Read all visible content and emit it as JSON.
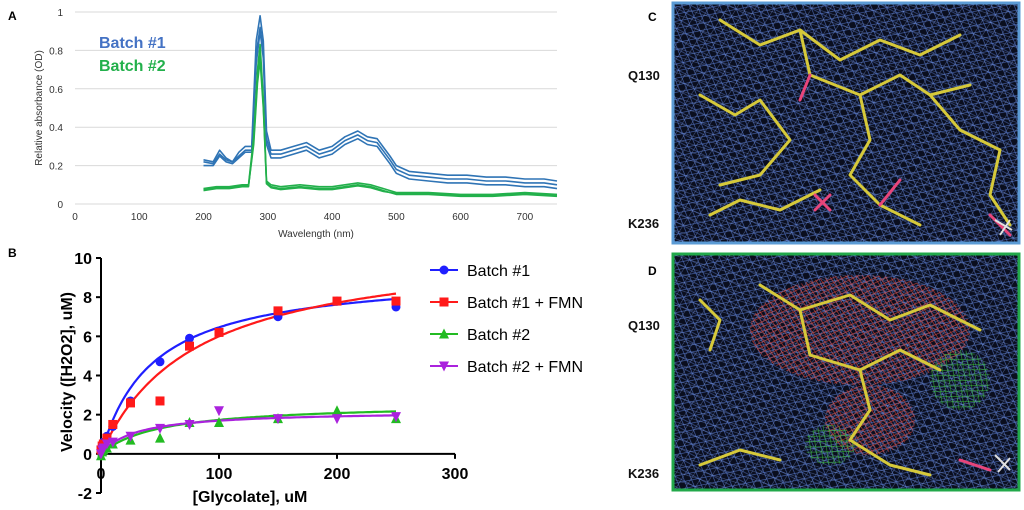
{
  "chart_data": [
    {
      "panel": "A",
      "type": "line",
      "xlabel": "Wavelength (nm)",
      "ylabel": "Relative absorbance (OD)",
      "xlim": [
        0,
        750
      ],
      "ylim": [
        0,
        1
      ],
      "xticks": [
        0,
        100,
        200,
        300,
        400,
        500,
        600,
        700
      ],
      "yticks": [
        0,
        0.2,
        0.4,
        0.6,
        0.8,
        1
      ],
      "xtick_labels": [
        "0",
        "100",
        "200",
        "300",
        "400",
        "500",
        "600",
        "700"
      ],
      "ytick_labels": [
        "0",
        "0.2",
        "0.4",
        "0.6",
        "0.8",
        "1"
      ],
      "grid": "horizontal",
      "legend": "top-left",
      "series": [
        {
          "name": "Batch #1",
          "color": "#2f74b5",
          "replicates": [
            {
              "x": [
                200,
                215,
                225,
                235,
                245,
                255,
                265,
                275,
                282,
                288,
                293,
                298,
                305,
                320,
                340,
                360,
                380,
                400,
                420,
                440,
                455,
                470,
                490,
                500,
                520,
                550,
                580,
                610,
                640,
                670,
                700,
                730,
                750
              ],
              "y": [
                0.23,
                0.22,
                0.28,
                0.24,
                0.22,
                0.27,
                0.3,
                0.3,
                0.85,
                0.98,
                0.85,
                0.38,
                0.28,
                0.28,
                0.3,
                0.32,
                0.28,
                0.3,
                0.35,
                0.38,
                0.35,
                0.34,
                0.25,
                0.2,
                0.17,
                0.16,
                0.15,
                0.15,
                0.14,
                0.14,
                0.13,
                0.13,
                0.12
              ]
            },
            {
              "x": [
                200,
                215,
                225,
                235,
                245,
                255,
                265,
                275,
                282,
                288,
                293,
                298,
                305,
                320,
                340,
                360,
                380,
                400,
                420,
                440,
                455,
                470,
                490,
                500,
                520,
                550,
                580,
                610,
                640,
                670,
                700,
                730,
                750
              ],
              "y": [
                0.2,
                0.2,
                0.25,
                0.22,
                0.21,
                0.24,
                0.27,
                0.27,
                0.78,
                0.92,
                0.8,
                0.34,
                0.26,
                0.26,
                0.28,
                0.3,
                0.26,
                0.28,
                0.33,
                0.36,
                0.33,
                0.32,
                0.23,
                0.18,
                0.15,
                0.14,
                0.13,
                0.13,
                0.12,
                0.12,
                0.11,
                0.11,
                0.1
              ]
            },
            {
              "x": [
                200,
                215,
                225,
                235,
                245,
                255,
                265,
                275,
                282,
                288,
                293,
                298,
                305,
                320,
                340,
                360,
                380,
                400,
                420,
                440,
                455,
                470,
                490,
                500,
                520,
                550,
                580,
                610,
                640,
                670,
                700,
                730,
                750
              ],
              "y": [
                0.22,
                0.21,
                0.26,
                0.23,
                0.22,
                0.25,
                0.28,
                0.28,
                0.73,
                0.9,
                0.76,
                0.31,
                0.24,
                0.24,
                0.26,
                0.28,
                0.24,
                0.26,
                0.31,
                0.34,
                0.31,
                0.3,
                0.21,
                0.16,
                0.13,
                0.12,
                0.11,
                0.11,
                0.1,
                0.1,
                0.09,
                0.09,
                0.08
              ]
            }
          ]
        },
        {
          "name": "Batch #2",
          "color": "#22b04b",
          "replicates": [
            {
              "x": [
                200,
                220,
                240,
                260,
                270,
                278,
                284,
                288,
                293,
                298,
                305,
                320,
                350,
                380,
                400,
                420,
                440,
                460,
                480,
                500,
                550,
                600,
                650,
                700,
                750
              ],
              "y": [
                0.08,
                0.09,
                0.09,
                0.1,
                0.1,
                0.35,
                0.7,
                0.83,
                0.55,
                0.12,
                0.1,
                0.09,
                0.1,
                0.09,
                0.09,
                0.1,
                0.11,
                0.1,
                0.08,
                0.06,
                0.06,
                0.05,
                0.05,
                0.06,
                0.05
              ]
            },
            {
              "x": [
                200,
                220,
                240,
                260,
                270,
                278,
                284,
                288,
                293,
                298,
                305,
                320,
                350,
                380,
                400,
                420,
                440,
                460,
                480,
                500,
                550,
                600,
                650,
                700,
                750
              ],
              "y": [
                0.07,
                0.08,
                0.08,
                0.09,
                0.09,
                0.33,
                0.66,
                0.78,
                0.52,
                0.11,
                0.09,
                0.08,
                0.09,
                0.08,
                0.08,
                0.09,
                0.1,
                0.09,
                0.07,
                0.05,
                0.05,
                0.04,
                0.04,
                0.05,
                0.04
              ]
            },
            {
              "x": [
                200,
                220,
                240,
                260,
                270,
                278,
                284,
                288,
                293,
                298,
                305,
                320,
                350,
                380,
                400,
                420,
                440,
                460,
                480,
                500,
                550,
                600,
                650,
                700,
                750
              ],
              "y": [
                0.075,
                0.085,
                0.085,
                0.095,
                0.095,
                0.31,
                0.63,
                0.75,
                0.5,
                0.105,
                0.085,
                0.075,
                0.085,
                0.075,
                0.075,
                0.085,
                0.095,
                0.085,
                0.065,
                0.055,
                0.055,
                0.045,
                0.045,
                0.055,
                0.045
              ]
            }
          ]
        }
      ]
    },
    {
      "panel": "B",
      "type": "scatter",
      "xlabel": "[Glycolate], uM",
      "ylabel": "Velocity ([H2O2], uM)",
      "xlim": [
        0,
        300
      ],
      "ylim": [
        -2,
        10
      ],
      "xticks": [
        0,
        100,
        200,
        300
      ],
      "yticks": [
        -2,
        0,
        2,
        4,
        6,
        8,
        10
      ],
      "xtick_labels": [
        "0",
        "100",
        "200",
        "300"
      ],
      "ytick_labels": [
        "-2",
        "0",
        "2",
        "4",
        "6",
        "8",
        "10"
      ],
      "grid": "none",
      "legend": "right",
      "series": [
        {
          "name": "Batch #1",
          "color": "#1f1fff",
          "marker": "circle",
          "x": [
            0,
            1,
            2,
            5,
            10,
            25,
            50,
            75,
            100,
            150,
            200,
            250
          ],
          "y": [
            0.1,
            0.3,
            0.6,
            0.9,
            1.4,
            2.7,
            4.7,
            5.9,
            6.2,
            7.0,
            7.8,
            7.5
          ],
          "fit": {
            "vmax": 9.3,
            "km": 44
          }
        },
        {
          "name": "Batch #1 + FMN",
          "color": "#ff1a1a",
          "marker": "square",
          "x": [
            0,
            1,
            2,
            5,
            10,
            25,
            50,
            75,
            100,
            150,
            200,
            250
          ],
          "y": [
            0.2,
            0.4,
            0.5,
            0.8,
            1.5,
            2.6,
            2.7,
            5.5,
            6.2,
            7.3,
            7.8,
            7.8
          ],
          "fit": {
            "vmax": 10.8,
            "km": 80
          }
        },
        {
          "name": "Batch #2",
          "color": "#22bb22",
          "marker": "triangle-up",
          "x": [
            0,
            1,
            2,
            5,
            10,
            25,
            50,
            75,
            100,
            150,
            200,
            250
          ],
          "y": [
            -0.1,
            0.1,
            0.2,
            0.3,
            0.5,
            0.7,
            0.8,
            1.6,
            1.6,
            1.8,
            2.2,
            1.8
          ],
          "fit": {
            "vmax": 2.6,
            "km": 50
          }
        },
        {
          "name": "Batch #2 + FMN",
          "color": "#aa22dd",
          "marker": "triangle-down",
          "x": [
            0,
            1,
            2,
            5,
            10,
            25,
            50,
            75,
            100,
            150,
            200,
            250
          ],
          "y": [
            0.0,
            0.2,
            0.3,
            0.5,
            0.6,
            0.9,
            1.3,
            1.5,
            2.2,
            1.8,
            1.8,
            1.9
          ],
          "fit": {
            "vmax": 2.2,
            "km": 30
          }
        }
      ]
    }
  ],
  "panels": {
    "A": {
      "label": "A"
    },
    "B": {
      "label": "B"
    },
    "C": {
      "label": "C",
      "frame_color": "#5b9bd5",
      "residues": [
        "Q130",
        "K236"
      ]
    },
    "D": {
      "label": "D",
      "frame_color": "#22a84a",
      "residues": [
        "Q130",
        "K236"
      ]
    }
  }
}
